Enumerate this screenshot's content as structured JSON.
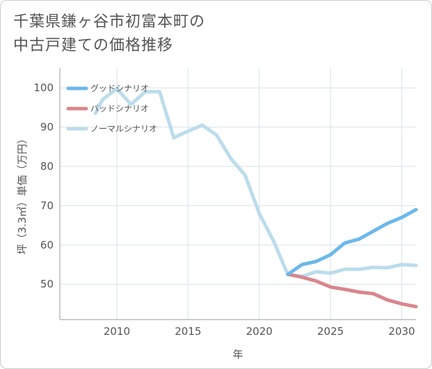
{
  "title_lines": [
    "千葉県鎌ヶ谷市初富本町の",
    "中古戸建ての価格推移"
  ],
  "chart_data": {
    "type": "line",
    "xlabel": "年",
    "ylabel": "坪（3.3㎡）単価（万円）",
    "xlim": [
      2006,
      2031
    ],
    "ylim": [
      41,
      105
    ],
    "xticks": [
      2010,
      2015,
      2020,
      2025,
      2030
    ],
    "yticks": [
      50,
      60,
      70,
      80,
      90,
      100
    ],
    "grid": true,
    "legend_position": "top-left",
    "series": [
      {
        "name": "グッドシナリオ",
        "color": "#6cb8ea",
        "x": [
          2022,
          2023,
          2024,
          2025,
          2026,
          2027,
          2028,
          2029,
          2030,
          2031
        ],
        "y": [
          52.5,
          55.0,
          55.8,
          57.5,
          60.5,
          61.5,
          63.5,
          65.5,
          67.0,
          69.0
        ]
      },
      {
        "name": "バッドシナリオ",
        "color": "#d9868c",
        "x": [
          2022,
          2023,
          2024,
          2025,
          2026,
          2027,
          2028,
          2029,
          2030,
          2031
        ],
        "y": [
          52.5,
          51.8,
          50.8,
          49.3,
          48.7,
          48.0,
          47.6,
          46.0,
          45.0,
          44.3
        ]
      },
      {
        "name": "ノーマルシナリオ",
        "color": "#bcdcec",
        "x": [
          2008.5,
          2009,
          2010,
          2011,
          2012,
          2013,
          2014,
          2015,
          2016,
          2017,
          2018,
          2019,
          2020,
          2021,
          2022,
          2023,
          2024,
          2025,
          2026,
          2027,
          2028,
          2029,
          2030,
          2031
        ],
        "y": [
          93.5,
          97.0,
          99.8,
          95.8,
          99.0,
          99.0,
          87.3,
          89.0,
          90.5,
          88.0,
          82.0,
          77.8,
          68.0,
          61.0,
          52.5,
          52.0,
          53.2,
          52.8,
          53.8,
          53.8,
          54.3,
          54.2,
          55.0,
          54.8
        ]
      }
    ]
  }
}
